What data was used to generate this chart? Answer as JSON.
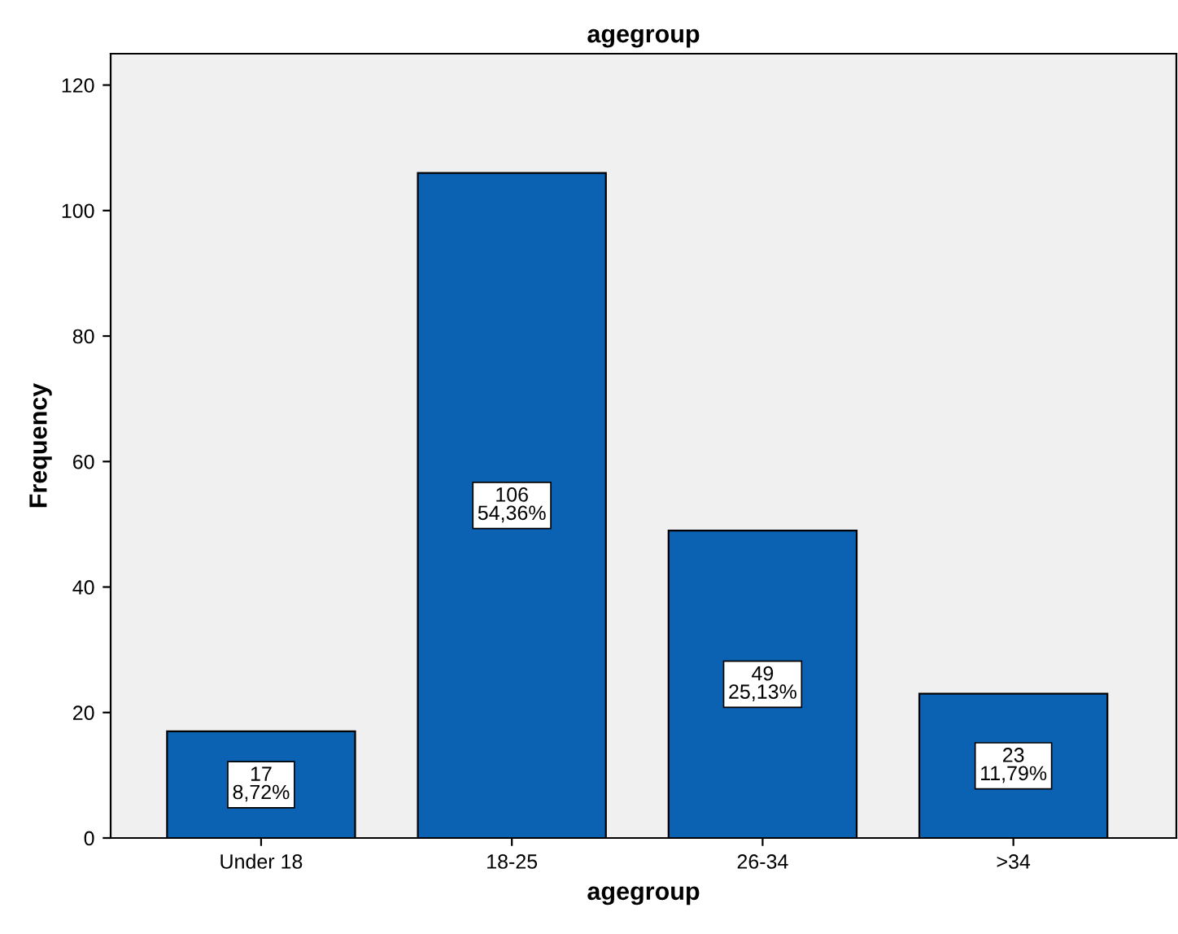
{
  "chart_data": {
    "type": "bar",
    "title": "agegroup",
    "xlabel": "agegroup",
    "ylabel": "Frequency",
    "categories": [
      "Under 18",
      "18-25",
      "26-34",
      ">34"
    ],
    "values": [
      17,
      106,
      49,
      23
    ],
    "value_labels": [
      "17\n8,72%",
      "106\n54,36%",
      "49\n25,13%",
      "23\n11,79%"
    ],
    "color": "#0b62b2",
    "ylim": [
      0,
      125
    ],
    "yticks": [
      0,
      20,
      40,
      60,
      80,
      100,
      120
    ],
    "grid": false
  }
}
